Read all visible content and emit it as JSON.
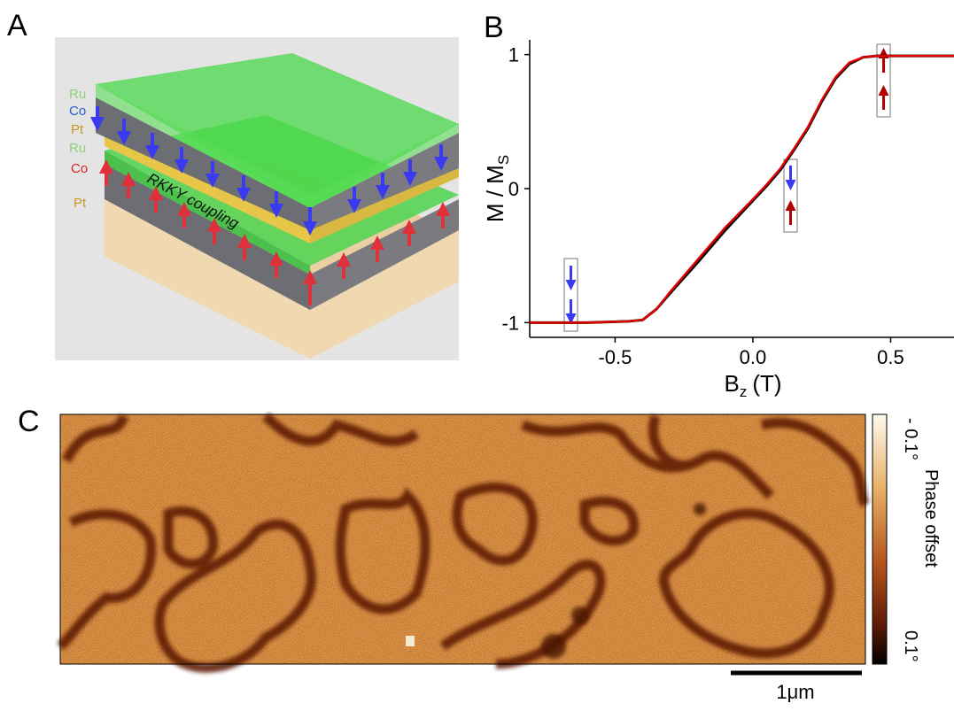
{
  "panel_labels": [
    "A",
    "B",
    "C"
  ],
  "panel_a": {
    "layer_labels": [
      "Ru",
      "Co",
      "Pt",
      "Ru",
      "Co",
      "Pt"
    ],
    "annotation": "RKKY coupling"
  },
  "chart_data": {
    "type": "line",
    "x_label": {
      "main": "B",
      "sub": "z",
      "unit": "(T)"
    },
    "y_label": {
      "main": "M / M",
      "sub": "S"
    },
    "x": [
      -0.81,
      -0.6,
      -0.45,
      -0.4,
      -0.35,
      -0.3,
      -0.2,
      -0.1,
      0.0,
      0.05,
      0.1,
      0.15,
      0.2,
      0.25,
      0.3,
      0.35,
      0.4,
      0.45,
      0.6,
      0.73
    ],
    "series": [
      {
        "color": "#000000",
        "values": [
          -1.0,
          -1.0,
          -0.99,
          -0.98,
          -0.9,
          -0.78,
          -0.55,
          -0.31,
          -0.09,
          0.02,
          0.14,
          0.29,
          0.45,
          0.65,
          0.82,
          0.93,
          0.98,
          0.99,
          0.99,
          0.99
        ]
      },
      {
        "color": "#e00000",
        "values": [
          -1.0,
          -1.0,
          -0.99,
          -0.98,
          -0.9,
          -0.77,
          -0.53,
          -0.29,
          -0.08,
          0.03,
          0.15,
          0.3,
          0.46,
          0.66,
          0.83,
          0.94,
          0.98,
          0.99,
          0.99,
          0.99
        ]
      }
    ],
    "xlim": [
      -0.81,
      0.73
    ],
    "ylim": [
      -1.11,
      1.11
    ],
    "xticks": [
      -0.5,
      {
        "value": 0,
        "label": "0.0"
      },
      0.5
    ],
    "yticks": [
      -1,
      0,
      1
    ]
  },
  "panel_c": {
    "colorbar": {
      "top_label": "- 0.1°",
      "bottom_label": "0.1°",
      "title": "Phase offset"
    },
    "scale_bar": "1μm"
  }
}
